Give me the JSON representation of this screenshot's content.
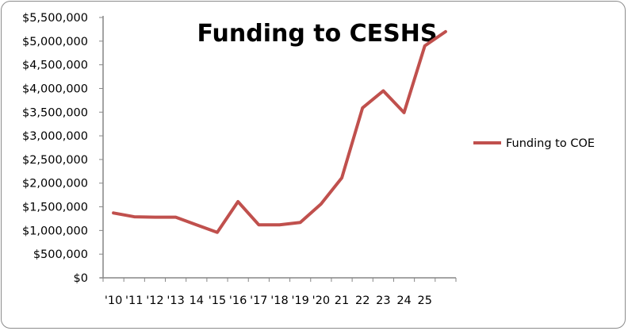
{
  "chart_data": {
    "type": "line",
    "title": "Funding to CESHS",
    "xlabel": "",
    "ylabel": "",
    "categories": [
      "'10",
      "'11",
      "'12",
      "'13",
      "14",
      "'15",
      "'16",
      "'17",
      "'18",
      "'19",
      "'20",
      "21",
      "22",
      "23",
      "24",
      "25",
      ""
    ],
    "series": [
      {
        "name": "Funding to COE",
        "color": "#C0504D",
        "values": [
          1370000,
          1290000,
          1280000,
          1280000,
          1120000,
          960000,
          1610000,
          1120000,
          1120000,
          1170000,
          1560000,
          2110000,
          3590000,
          3950000,
          3490000,
          4900000,
          5200000
        ]
      }
    ],
    "ylim": [
      0,
      5500000
    ],
    "yticks": [
      0,
      500000,
      1000000,
      1500000,
      2000000,
      2500000,
      3000000,
      3500000,
      4000000,
      4500000,
      5000000,
      5500000
    ],
    "ytick_labels": [
      "$0",
      "$500,000",
      "$1,000,000",
      "$1,500,000",
      "$2,000,000",
      "$2,500,000",
      "$3,000,000",
      "$3,500,000",
      "$4,000,000",
      "$4,500,000",
      "$5,000,000",
      "$5,500,000"
    ],
    "grid": false,
    "legend": "right"
  }
}
